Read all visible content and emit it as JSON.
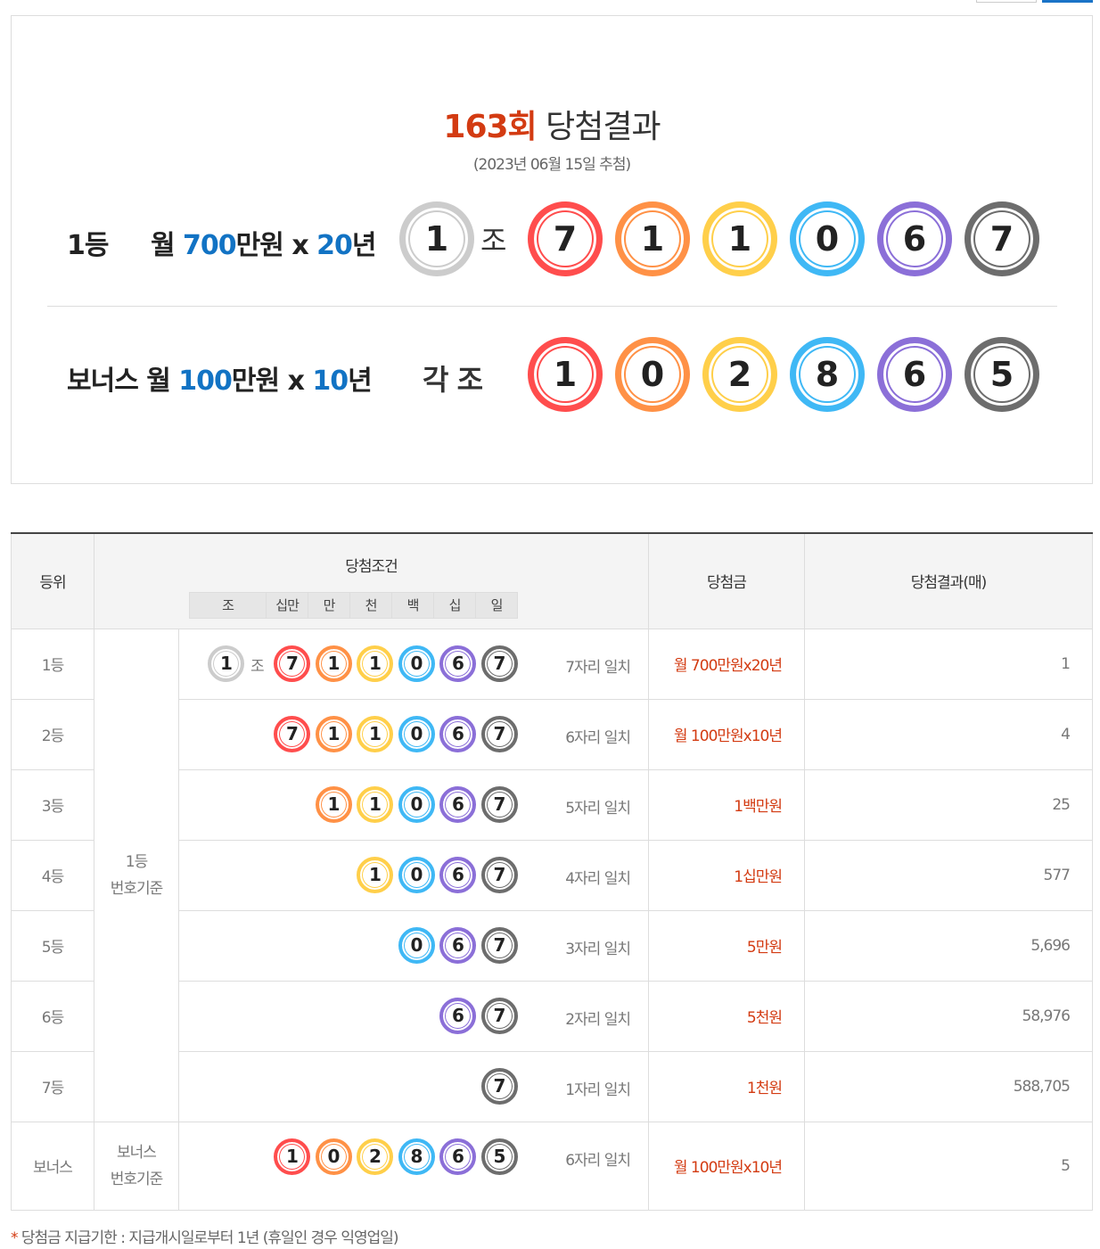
{
  "colors": {
    "red": "#ff4d4d",
    "orange": "#ff9146",
    "yellow": "#ffcf4a",
    "blue": "#3fb8f5",
    "purple": "#8b6fd8",
    "gray": "#6d6d6d",
    "white": "#cccccc",
    "accent": "#d33b12",
    "amount": "#1273c4"
  },
  "ball_colors": [
    "red",
    "orange",
    "yellow",
    "blue",
    "purple",
    "gray"
  ],
  "header": {
    "round": "163회",
    "title": "당첨결과",
    "date": "(2023년 06월 15일 추첨)"
  },
  "first": {
    "rank": "1등",
    "prefix": "월 ",
    "amount": "700",
    "mid": "만원 x ",
    "years": "20",
    "suffix": "년",
    "group": "1",
    "jo": "조",
    "numbers": [
      "7",
      "1",
      "1",
      "0",
      "6",
      "7"
    ]
  },
  "bonus": {
    "rank": "보너스 월 ",
    "amount": "100",
    "mid": "만원 x ",
    "years": "10",
    "suffix": "년",
    "group": "각 조",
    "numbers": [
      "1",
      "0",
      "2",
      "8",
      "6",
      "5"
    ]
  },
  "table": {
    "headers": {
      "rank": "등위",
      "condition": "당첨조건",
      "prize": "당첨금",
      "result": "당첨결과(매)"
    },
    "units": [
      "조",
      "십만",
      "만",
      "천",
      "백",
      "십",
      "일"
    ],
    "basis_first": [
      "1등",
      "번호기준"
    ],
    "basis_bonus": [
      "보너스",
      "번호기준"
    ],
    "jo": "조",
    "rows": [
      {
        "rank": "1등",
        "group": "1",
        "numbers": [
          "7",
          "1",
          "1",
          "0",
          "6",
          "7"
        ],
        "match": "7자리 일치",
        "prize": "월 700만원x20년",
        "count": "1"
      },
      {
        "rank": "2등",
        "numbers": [
          "7",
          "1",
          "1",
          "0",
          "6",
          "7"
        ],
        "match": "6자리 일치",
        "prize": "월 100만원x10년",
        "count": "4"
      },
      {
        "rank": "3등",
        "numbers": [
          "1",
          "1",
          "0",
          "6",
          "7"
        ],
        "match": "5자리 일치",
        "prize": "1백만원",
        "count": "25"
      },
      {
        "rank": "4등",
        "numbers": [
          "1",
          "0",
          "6",
          "7"
        ],
        "match": "4자리 일치",
        "prize": "1십만원",
        "count": "577"
      },
      {
        "rank": "5등",
        "numbers": [
          "0",
          "6",
          "7"
        ],
        "match": "3자리 일치",
        "prize": "5만원",
        "count": "5,696"
      },
      {
        "rank": "6등",
        "numbers": [
          "6",
          "7"
        ],
        "match": "2자리 일치",
        "prize": "5천원",
        "count": "58,976"
      },
      {
        "rank": "7등",
        "numbers": [
          "7"
        ],
        "match": "1자리 일치",
        "prize": "1천원",
        "count": "588,705"
      },
      {
        "rank": "보너스",
        "numbers": [
          "1",
          "0",
          "2",
          "8",
          "6",
          "5"
        ],
        "match": "6자리 일치",
        "prize": "월 100만원x10년",
        "count": "5"
      }
    ]
  },
  "footnote": {
    "mark": "*",
    "text": " 당첨금 지급기한 : 지급개시일로부터 1년 (휴일인 경우 익영업일)"
  }
}
